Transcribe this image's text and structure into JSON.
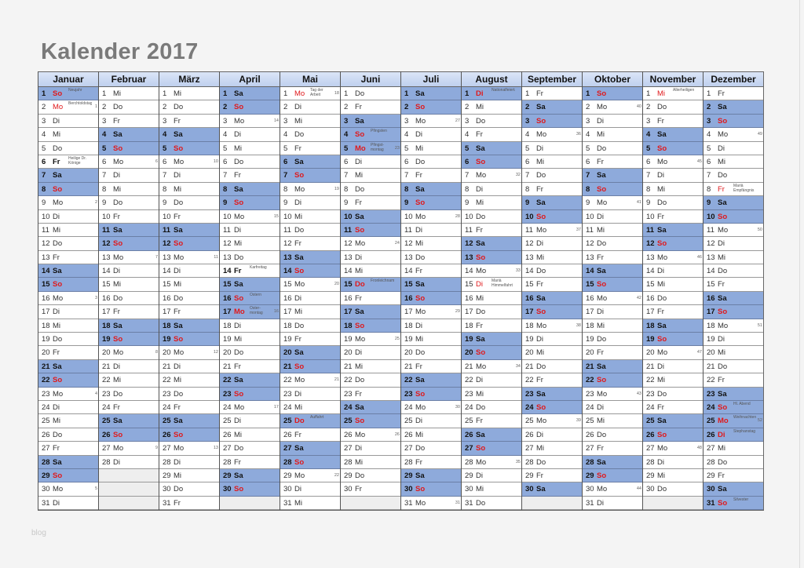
{
  "title": "Kalender 2017",
  "watermark": "blog",
  "colors": {
    "weekend_fill": "#8eaadb",
    "header_fill": "#c6d5ef",
    "sunday_holiday_text": "#e0191c",
    "title": "#7a7a7a"
  },
  "weekday_abbr": [
    "Mo",
    "Di",
    "Mi",
    "Do",
    "Fr",
    "Sa",
    "So"
  ],
  "months": [
    {
      "name": "Januar",
      "first_weekday": 6,
      "length": 31,
      "holidays": {
        "1": "Neujahr",
        "2": "Berchtoldstag",
        "6": "Heilige Dr. Könige"
      },
      "red_days": [
        1,
        2
      ],
      "bold_days": [
        6
      ],
      "highlight_days": [],
      "weeks": {
        "2": 1,
        "9": 2,
        "16": 3,
        "23": 4,
        "30": 5
      }
    },
    {
      "name": "Februar",
      "first_weekday": 2,
      "length": 28,
      "holidays": {},
      "red_days": [],
      "bold_days": [],
      "highlight_days": [],
      "weeks": {
        "6": 6,
        "13": 7,
        "20": 8,
        "27": 9
      }
    },
    {
      "name": "März",
      "first_weekday": 2,
      "length": 31,
      "holidays": {},
      "red_days": [],
      "bold_days": [],
      "highlight_days": [],
      "weeks": {
        "6": 10,
        "13": 11,
        "20": 12,
        "27": 13
      }
    },
    {
      "name": "April",
      "first_weekday": 5,
      "length": 30,
      "holidays": {
        "14": "Karfreitag",
        "16": "Ostern",
        "17": "Oster-montag"
      },
      "red_days": [
        17
      ],
      "bold_days": [
        14
      ],
      "highlight_days": [
        17
      ],
      "weeks": {
        "3": 14,
        "10": 15,
        "17": 16,
        "24": 17
      }
    },
    {
      "name": "Mai",
      "first_weekday": 0,
      "length": 31,
      "holidays": {
        "1": "Tag der Arbeit",
        "25": "Auffahrt"
      },
      "red_days": [
        1,
        25
      ],
      "bold_days": [],
      "highlight_days": [
        25
      ],
      "weeks": {
        "1": 18,
        "8": 19,
        "15": 20,
        "22": 21,
        "29": 22
      }
    },
    {
      "name": "Juni",
      "first_weekday": 3,
      "length": 30,
      "holidays": {
        "4": "Pfingsten",
        "5": "Pfingst-montag",
        "15": "Fronleichnam"
      },
      "red_days": [
        5,
        15
      ],
      "bold_days": [],
      "highlight_days": [
        5,
        15
      ],
      "weeks": {
        "5": 23,
        "12": 24,
        "19": 25,
        "26": 26
      }
    },
    {
      "name": "Juli",
      "first_weekday": 5,
      "length": 31,
      "holidays": {},
      "red_days": [],
      "bold_days": [],
      "highlight_days": [],
      "weeks": {
        "3": 27,
        "10": 28,
        "17": 29,
        "24": 30,
        "31": 31
      }
    },
    {
      "name": "August",
      "first_weekday": 1,
      "length": 31,
      "holidays": {
        "1": "Nationalfeiertag",
        "15": "Mariä Himmelfahrt"
      },
      "red_days": [
        1,
        15
      ],
      "bold_days": [],
      "highlight_days": [
        1
      ],
      "weeks": {
        "7": 32,
        "14": 33,
        "21": 34,
        "28": 35
      }
    },
    {
      "name": "September",
      "first_weekday": 4,
      "length": 30,
      "holidays": {},
      "red_days": [],
      "bold_days": [],
      "highlight_days": [],
      "weeks": {
        "4": 36,
        "11": 37,
        "18": 38,
        "25": 39
      }
    },
    {
      "name": "Oktober",
      "first_weekday": 6,
      "length": 31,
      "holidays": {},
      "red_days": [],
      "bold_days": [],
      "highlight_days": [],
      "weeks": {
        "2": 40,
        "9": 41,
        "16": 42,
        "23": 43,
        "30": 44
      }
    },
    {
      "name": "November",
      "first_weekday": 2,
      "length": 30,
      "holidays": {
        "1": "Allerheiligen"
      },
      "red_days": [
        1
      ],
      "bold_days": [],
      "highlight_days": [],
      "weeks": {
        "6": 45,
        "13": 46,
        "20": 47,
        "27": 48
      }
    },
    {
      "name": "Dezember",
      "first_weekday": 4,
      "length": 31,
      "holidays": {
        "8": "Mariä Empfängnis",
        "24": "Hl. Abend",
        "25": "Weihnachten",
        "26": "Stephanstag",
        "31": "Silvester"
      },
      "red_days": [
        8,
        25,
        26
      ],
      "bold_days": [],
      "highlight_days": [
        25,
        26
      ],
      "weeks": {
        "4": 49,
        "11": 50,
        "18": 51,
        "25": 52
      }
    }
  ]
}
